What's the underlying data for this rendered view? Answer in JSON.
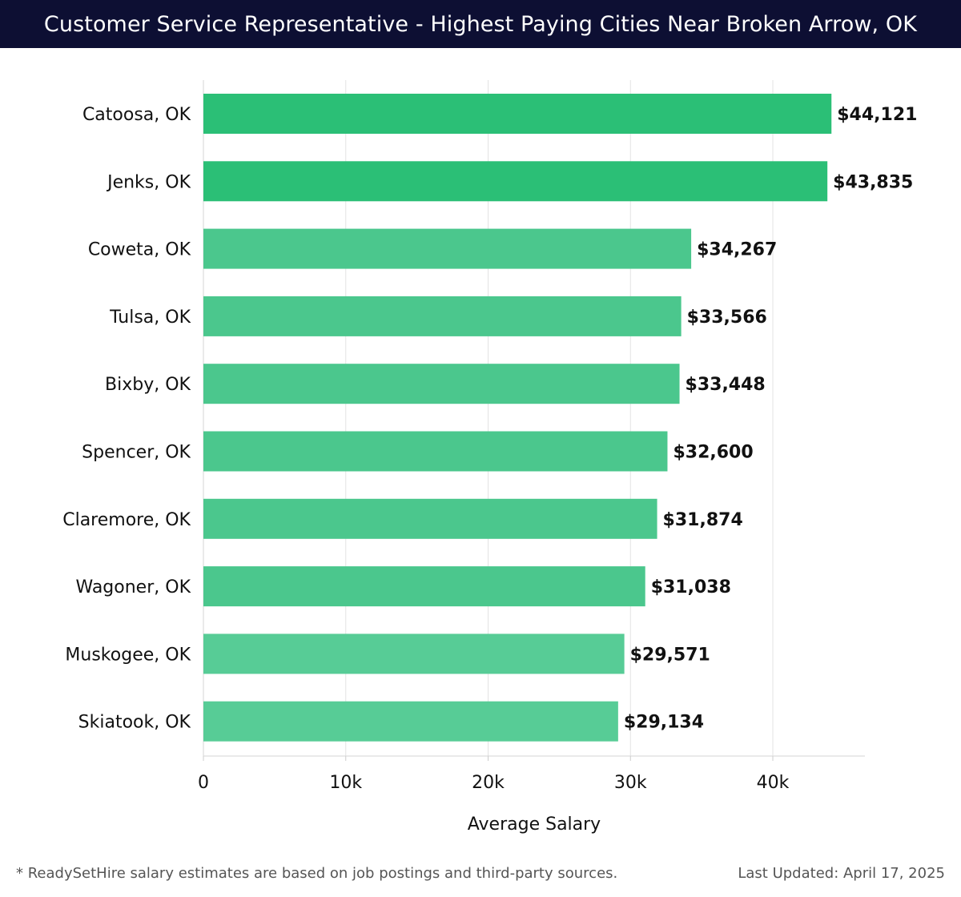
{
  "header": {
    "title": "Customer Service Representative - Highest Paying Cities Near Broken Arrow, OK"
  },
  "chart_data": {
    "type": "bar",
    "orientation": "horizontal",
    "categories": [
      "Catoosa, OK",
      "Jenks, OK",
      "Coweta, OK",
      "Tulsa, OK",
      "Bixby, OK",
      "Spencer, OK",
      "Claremore, OK",
      "Wagoner, OK",
      "Muskogee, OK",
      "Skiatook, OK"
    ],
    "values": [
      44121,
      43835,
      34267,
      33566,
      33448,
      32600,
      31874,
      31038,
      29571,
      29134
    ],
    "data_labels": [
      "$44,121",
      "$43,835",
      "$34,267",
      "$33,566",
      "$33,448",
      "$32,600",
      "$31,874",
      "$31,038",
      "$29,571",
      "$29,134"
    ],
    "bar_colors": [
      "#2bbf76",
      "#2bbf76",
      "#4bc78d",
      "#4bc78d",
      "#4bc78d",
      "#4bc78d",
      "#4bc78d",
      "#4bc78d",
      "#57cc96",
      "#57cc96"
    ],
    "xlabel": "Average Salary",
    "ylabel": "",
    "xticks": [
      0,
      10000,
      20000,
      30000,
      40000
    ],
    "xtick_labels": [
      "0",
      "10k",
      "20k",
      "30k",
      "40k"
    ],
    "xlim": [
      0,
      46500
    ],
    "grid": "vertical"
  },
  "footer": {
    "note": "* ReadySetHire salary estimates are based on job postings and third-party sources.",
    "updated": "Last Updated: April 17, 2025"
  }
}
